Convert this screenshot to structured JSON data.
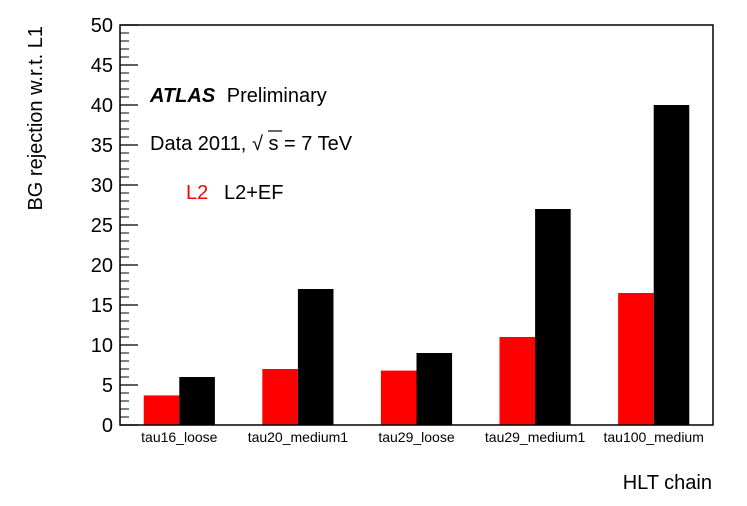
{
  "chart_data": {
    "type": "bar",
    "title": "",
    "xlabel": "HLT chain",
    "ylabel": "BG rejection w.r.t. L1",
    "ylim": [
      0,
      50
    ],
    "yticks": [
      0,
      5,
      10,
      15,
      20,
      25,
      30,
      35,
      40,
      45,
      50
    ],
    "grid": false,
    "legend_position": "top-left",
    "categories": [
      "tau16_loose",
      "tau20_medium1",
      "tau29_loose",
      "tau29_medium1",
      "tau100_medium"
    ],
    "series": [
      {
        "name": "L2",
        "color": "#ff0000",
        "values": [
          3.7,
          7.0,
          6.8,
          11.0,
          16.5
        ]
      },
      {
        "name": "L2+EF",
        "color": "#000000",
        "values": [
          6.0,
          17.0,
          9.0,
          27.0,
          40.0
        ]
      }
    ],
    "annotations": {
      "experiment": "ATLAS",
      "status": "Preliminary",
      "dataset_prefix": "Data 2011,",
      "sqrt_symbol": "√",
      "sqrt_arg": "s",
      "energy": " = 7 TeV"
    }
  }
}
